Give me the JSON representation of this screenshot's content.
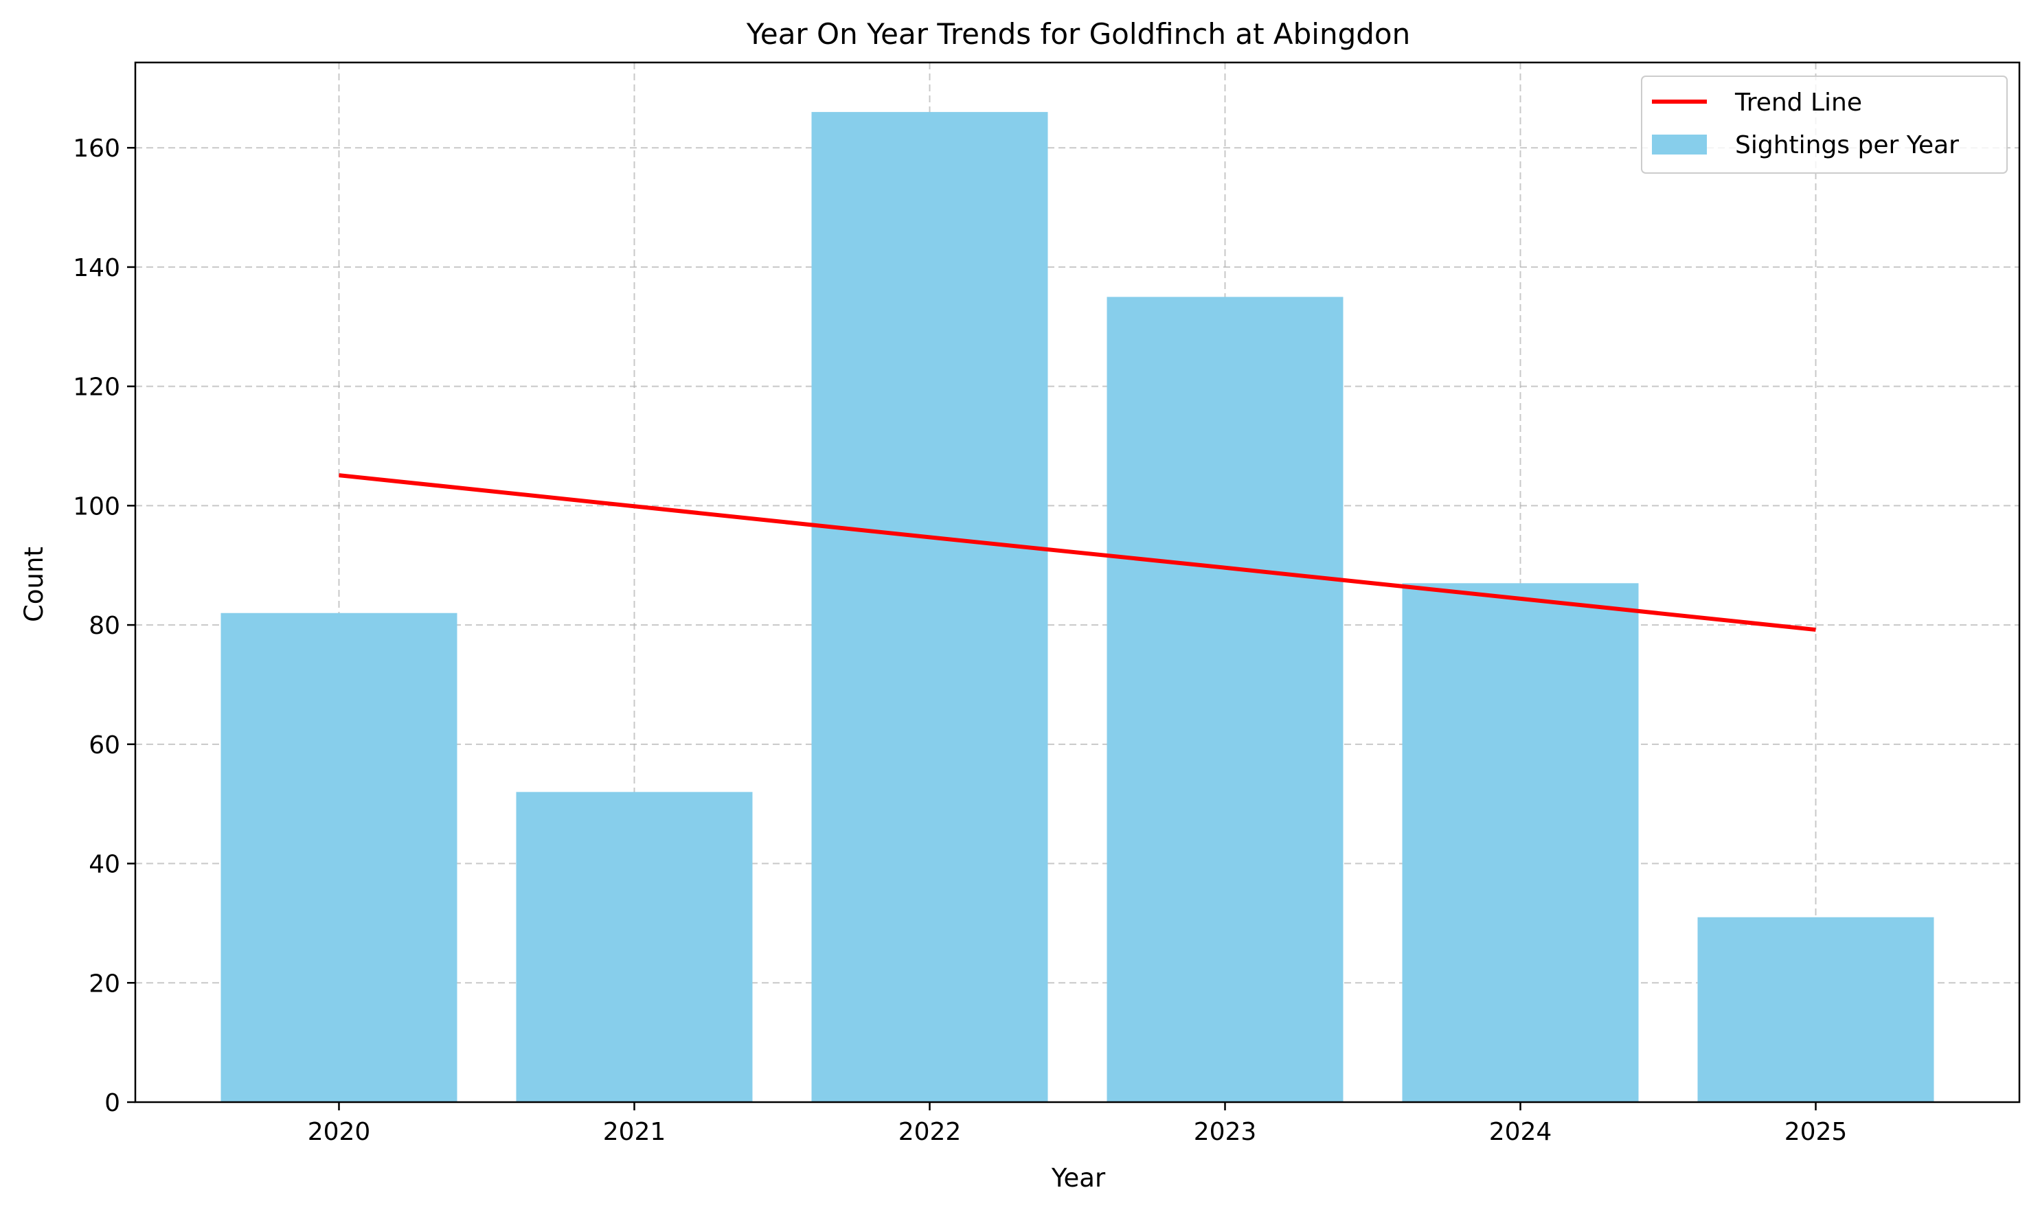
{
  "chart_data": {
    "type": "bar",
    "title": "Year On Year Trends for Goldfinch at Abingdon",
    "xlabel": "Year",
    "ylabel": "Count",
    "categories": [
      "2020",
      "2021",
      "2022",
      "2023",
      "2024",
      "2025"
    ],
    "series": [
      {
        "name": "Sightings per Year",
        "type": "bar",
        "color": "#87CEEB",
        "values": [
          82,
          52,
          166,
          135,
          87,
          31
        ]
      },
      {
        "name": "Trend Line",
        "type": "line",
        "color": "#FF0000",
        "values": [
          105.1,
          99.9,
          94.7,
          89.6,
          84.4,
          79.2
        ]
      }
    ],
    "ylim": [
      0,
      174.3
    ],
    "yticks": [
      0,
      20,
      40,
      60,
      80,
      100,
      120,
      140,
      160
    ],
    "grid": true,
    "legend_position": "top-right"
  }
}
